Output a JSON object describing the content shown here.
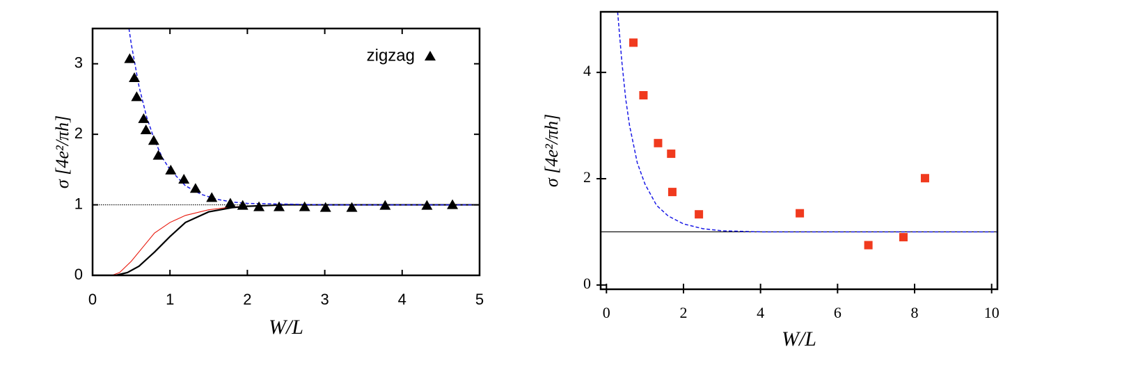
{
  "chart_data": [
    {
      "type": "scatter",
      "font": "sans",
      "mirror_ticks": true,
      "legend": "upper right",
      "xlabel": "W/L",
      "ylabel": "σ [4e²/πh]",
      "xlim": [
        0,
        5
      ],
      "ylim": [
        0,
        3.5
      ],
      "xticks": [
        0,
        1,
        2,
        3,
        4,
        5
      ],
      "yticks": [
        0,
        1,
        2,
        3
      ],
      "series": [
        {
          "line": "dotted",
          "color": "#000000",
          "x": [
            0,
            2
          ],
          "values": [
            1,
            1
          ]
        },
        {
          "line": "solid",
          "color": "#e8180c",
          "x": [
            0.25,
            0.35,
            0.5,
            0.65,
            0.8,
            1.0,
            1.2,
            1.5,
            1.8,
            2.0,
            2.5,
            3,
            5
          ],
          "values": [
            0,
            0.04,
            0.2,
            0.4,
            0.6,
            0.75,
            0.85,
            0.93,
            0.97,
            0.98,
            1.0,
            1.0,
            1.0
          ]
        },
        {
          "line": "solid",
          "color": "#000000",
          "x": [
            0,
            0.3,
            0.45,
            0.6,
            0.8,
            1.0,
            1.2,
            1.5,
            1.8,
            2.0,
            2.5,
            3,
            5
          ],
          "values": [
            0,
            0,
            0.04,
            0.13,
            0.33,
            0.55,
            0.75,
            0.9,
            0.96,
            0.98,
            1.0,
            1.0,
            1.0
          ]
        },
        {
          "line": "dashed",
          "color": "#1a1ae6",
          "x": [
            0.47,
            0.5,
            0.6,
            0.7,
            0.8,
            0.9,
            1.0,
            1.2,
            1.4,
            1.6,
            1.8,
            2.0,
            2.5,
            3,
            5
          ],
          "values": [
            3.5,
            3.28,
            2.68,
            2.24,
            1.92,
            1.67,
            1.5,
            1.27,
            1.15,
            1.08,
            1.04,
            1.02,
            1.01,
            1.0,
            1.0
          ]
        },
        {
          "name": "zigzag",
          "marker": "triangle",
          "color": "#000000",
          "x": [
            0.48,
            0.54,
            0.57,
            0.66,
            0.69,
            0.79,
            0.85,
            1.01,
            1.18,
            1.33,
            1.54,
            1.78,
            1.94,
            2.15,
            2.41,
            2.74,
            3.01,
            3.35,
            3.78,
            4.32,
            4.65
          ],
          "values": [
            3.07,
            2.8,
            2.53,
            2.22,
            2.06,
            1.91,
            1.7,
            1.49,
            1.36,
            1.23,
            1.1,
            1.02,
            0.99,
            0.97,
            0.97,
            0.97,
            0.96,
            0.96,
            0.99,
            0.99,
            1.0
          ]
        }
      ]
    },
    {
      "type": "scatter",
      "font": "serif",
      "mirror_ticks": false,
      "xlabel": "W/L",
      "ylabel": "σ [4e²/πh]",
      "xlim": [
        -0.15,
        10.15
      ],
      "ylim": [
        -0.08,
        5.14
      ],
      "xticks": [
        0,
        2,
        4,
        6,
        8,
        10
      ],
      "yticks": [
        0,
        2,
        4
      ],
      "series": [
        {
          "line": "solid",
          "color": "#000000",
          "x": [
            -0.15,
            10.15
          ],
          "values": [
            1,
            1
          ]
        },
        {
          "line": "dashed",
          "color": "#1a1ae6",
          "x": [
            0.29,
            0.4,
            0.5,
            0.6,
            0.8,
            1.0,
            1.3,
            1.6,
            2.0,
            2.5,
            3,
            4,
            10.15
          ],
          "values": [
            5.14,
            4.2,
            3.5,
            3.0,
            2.3,
            1.9,
            1.5,
            1.3,
            1.15,
            1.06,
            1.02,
            1.0,
            1.0
          ]
        },
        {
          "marker": "square",
          "color": "#f03a1e",
          "x": [
            0.7,
            0.96,
            1.34,
            1.68,
            1.71,
            2.4,
            5.02,
            6.8,
            7.71,
            8.27
          ],
          "values": [
            4.56,
            3.57,
            2.67,
            2.47,
            1.75,
            1.33,
            1.35,
            0.75,
            0.9,
            2.01
          ]
        }
      ]
    }
  ]
}
